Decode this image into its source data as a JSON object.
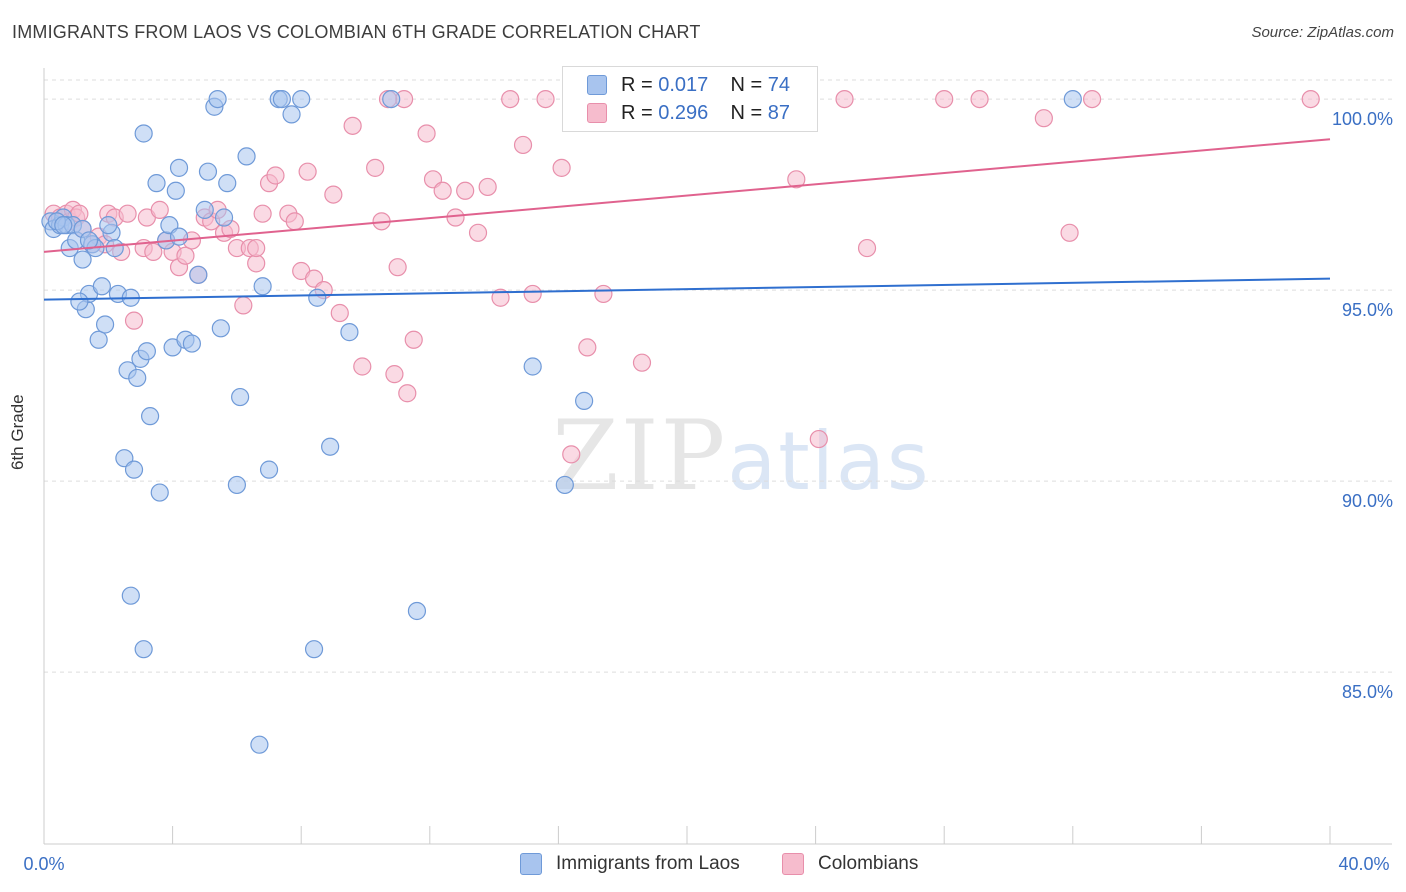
{
  "title": "IMMIGRANTS FROM LAOS VS COLOMBIAN 6TH GRADE CORRELATION CHART",
  "source": "Source: ZipAtlas.com",
  "watermark": {
    "part1": "ZIP",
    "part2": "atlas"
  },
  "legend": {
    "series1": {
      "r_label": "R = ",
      "r_value": "0.017",
      "n_label": "N = ",
      "n_value": "74"
    },
    "series2": {
      "r_label": "R = ",
      "r_value": "0.296",
      "n_label": "N = ",
      "n_value": "87"
    }
  },
  "colors": {
    "blue_fill": "#a8c4ee",
    "blue_stroke": "#6f9ad8",
    "blue_line": "#2f6fcf",
    "pink_fill": "#f6bccd",
    "pink_stroke": "#e88fab",
    "pink_line": "#e0628e",
    "tick_label": "#3a6fc4",
    "grid": "#dddddd"
  },
  "chart_data": {
    "type": "scatter",
    "title": "IMMIGRANTS FROM LAOS VS COLOMBIAN 6TH GRADE CORRELATION CHART",
    "xlabel": "",
    "ylabel": "6th Grade",
    "xlim": [
      0,
      40
    ],
    "ylim": [
      80.5,
      100.5
    ],
    "x_tick_labels": [
      "0.0%",
      "40.0%"
    ],
    "y_ticks": [
      85,
      90,
      95,
      100
    ],
    "y_tick_labels": [
      "85.0%",
      "90.0%",
      "95.0%",
      "100.0%"
    ],
    "series": [
      {
        "name": "Immigrants from Laos",
        "R": 0.017,
        "N": 74,
        "trend": {
          "x": [
            0,
            40
          ],
          "y": [
            94.75,
            95.3
          ]
        },
        "points": [
          [
            0.2,
            96.8
          ],
          [
            0.3,
            96.6
          ],
          [
            0.5,
            96.7
          ],
          [
            0.6,
            96.9
          ],
          [
            0.7,
            96.7
          ],
          [
            0.8,
            96.1
          ],
          [
            0.9,
            96.7
          ],
          [
            1.0,
            96.3
          ],
          [
            1.2,
            95.8
          ],
          [
            1.3,
            94.5
          ],
          [
            1.4,
            94.9
          ],
          [
            1.5,
            96.2
          ],
          [
            1.6,
            96.1
          ],
          [
            1.7,
            93.7
          ],
          [
            1.8,
            95.1
          ],
          [
            1.9,
            94.1
          ],
          [
            2.1,
            96.5
          ],
          [
            2.2,
            96.1
          ],
          [
            2.3,
            94.9
          ],
          [
            2.5,
            90.6
          ],
          [
            2.6,
            92.9
          ],
          [
            2.7,
            87.0
          ],
          [
            2.8,
            90.3
          ],
          [
            2.9,
            92.7
          ],
          [
            3.0,
            93.2
          ],
          [
            3.1,
            99.1
          ],
          [
            3.2,
            93.4
          ],
          [
            3.3,
            91.7
          ],
          [
            3.5,
            97.8
          ],
          [
            3.6,
            89.7
          ],
          [
            3.8,
            96.3
          ],
          [
            3.9,
            96.7
          ],
          [
            4.0,
            93.5
          ],
          [
            4.2,
            98.2
          ],
          [
            4.4,
            93.7
          ],
          [
            4.6,
            93.6
          ],
          [
            4.8,
            95.4
          ],
          [
            5.0,
            97.1
          ],
          [
            5.1,
            98.1
          ],
          [
            5.3,
            99.8
          ],
          [
            5.4,
            100.0
          ],
          [
            5.5,
            94.0
          ],
          [
            5.7,
            97.8
          ],
          [
            6.1,
            92.2
          ],
          [
            6.3,
            98.5
          ],
          [
            6.7,
            83.1
          ],
          [
            6.8,
            95.1
          ],
          [
            7.0,
            90.3
          ],
          [
            7.3,
            100.0
          ],
          [
            7.4,
            100.0
          ],
          [
            7.7,
            99.6
          ],
          [
            8.0,
            100.0
          ],
          [
            8.5,
            94.8
          ],
          [
            8.9,
            90.9
          ],
          [
            9.5,
            93.9
          ],
          [
            10.8,
            100.0
          ],
          [
            11.6,
            86.6
          ],
          [
            15.2,
            93.0
          ],
          [
            16.2,
            89.9
          ],
          [
            16.8,
            92.1
          ],
          [
            32.0,
            100.0
          ],
          [
            1.2,
            96.6
          ],
          [
            2.0,
            96.7
          ],
          [
            3.1,
            85.6
          ],
          [
            8.4,
            85.6
          ],
          [
            6.0,
            89.9
          ],
          [
            0.4,
            96.8
          ],
          [
            1.1,
            94.7
          ],
          [
            4.2,
            96.4
          ],
          [
            2.7,
            94.8
          ],
          [
            4.1,
            97.6
          ],
          [
            5.6,
            96.9
          ],
          [
            1.4,
            96.3
          ],
          [
            0.6,
            96.7
          ]
        ]
      },
      {
        "name": "Colombians",
        "R": 0.296,
        "N": 87,
        "trend": {
          "x": [
            0,
            40
          ],
          "y": [
            96.0,
            98.95
          ]
        },
        "points": [
          [
            0.3,
            97.0
          ],
          [
            0.5,
            96.9
          ],
          [
            0.7,
            97.0
          ],
          [
            0.8,
            96.8
          ],
          [
            0.9,
            97.1
          ],
          [
            1.0,
            96.9
          ],
          [
            1.1,
            97.0
          ],
          [
            1.2,
            96.6
          ],
          [
            1.5,
            96.2
          ],
          [
            1.7,
            96.4
          ],
          [
            1.9,
            96.2
          ],
          [
            2.0,
            97.0
          ],
          [
            2.2,
            96.9
          ],
          [
            2.4,
            96.0
          ],
          [
            2.6,
            97.0
          ],
          [
            2.8,
            94.2
          ],
          [
            3.1,
            96.1
          ],
          [
            3.2,
            96.9
          ],
          [
            3.4,
            96.0
          ],
          [
            3.6,
            97.1
          ],
          [
            3.8,
            96.3
          ],
          [
            4.0,
            96.0
          ],
          [
            4.2,
            95.6
          ],
          [
            4.4,
            95.9
          ],
          [
            4.6,
            96.3
          ],
          [
            4.8,
            95.4
          ],
          [
            5.0,
            96.9
          ],
          [
            5.2,
            96.8
          ],
          [
            5.4,
            97.1
          ],
          [
            5.6,
            96.5
          ],
          [
            5.8,
            96.6
          ],
          [
            6.0,
            96.1
          ],
          [
            6.2,
            94.6
          ],
          [
            6.4,
            96.1
          ],
          [
            6.6,
            95.7
          ],
          [
            6.8,
            97.0
          ],
          [
            7.0,
            97.8
          ],
          [
            7.2,
            98.0
          ],
          [
            7.6,
            97.0
          ],
          [
            7.8,
            96.8
          ],
          [
            8.0,
            95.5
          ],
          [
            8.2,
            98.1
          ],
          [
            8.4,
            95.3
          ],
          [
            8.7,
            95.0
          ],
          [
            9.0,
            97.5
          ],
          [
            9.2,
            94.4
          ],
          [
            9.6,
            99.3
          ],
          [
            9.9,
            93.0
          ],
          [
            10.3,
            98.2
          ],
          [
            10.5,
            96.8
          ],
          [
            10.9,
            92.8
          ],
          [
            11.0,
            95.6
          ],
          [
            11.3,
            92.3
          ],
          [
            11.5,
            93.7
          ],
          [
            11.9,
            99.1
          ],
          [
            12.1,
            97.9
          ],
          [
            12.4,
            97.6
          ],
          [
            12.8,
            96.9
          ],
          [
            13.1,
            97.6
          ],
          [
            13.5,
            96.5
          ],
          [
            13.8,
            97.7
          ],
          [
            14.2,
            94.8
          ],
          [
            14.5,
            100.0
          ],
          [
            14.9,
            98.8
          ],
          [
            15.2,
            94.9
          ],
          [
            15.6,
            100.0
          ],
          [
            16.1,
            98.2
          ],
          [
            16.4,
            90.7
          ],
          [
            16.9,
            93.5
          ],
          [
            17.4,
            94.9
          ],
          [
            17.9,
            100.0
          ],
          [
            18.6,
            93.1
          ],
          [
            19.5,
            100.0
          ],
          [
            22.6,
            100.0
          ],
          [
            23.4,
            97.9
          ],
          [
            24.1,
            91.1
          ],
          [
            24.9,
            100.0
          ],
          [
            25.6,
            96.1
          ],
          [
            28.0,
            100.0
          ],
          [
            29.1,
            100.0
          ],
          [
            31.1,
            99.5
          ],
          [
            31.9,
            96.5
          ],
          [
            32.6,
            100.0
          ],
          [
            39.4,
            100.0
          ],
          [
            11.2,
            100.0
          ],
          [
            10.7,
            100.0
          ],
          [
            6.6,
            96.1
          ]
        ]
      }
    ]
  }
}
